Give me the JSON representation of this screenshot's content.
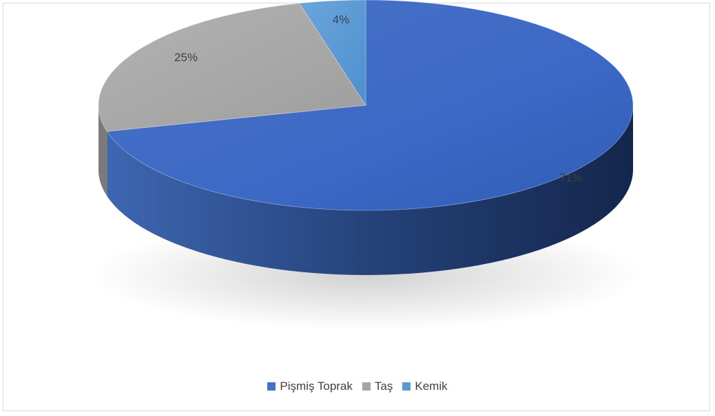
{
  "chart_data": {
    "type": "pie",
    "title": "",
    "categories": [
      "Pişmiş Toprak",
      "Taş",
      "Kemik"
    ],
    "values": [
      71,
      25,
      4
    ],
    "labels": [
      "71%",
      "25%",
      "4%"
    ],
    "colors": [
      "#4472c4",
      "#a5a5a5",
      "#5b9bd5"
    ],
    "legend_position": "bottom",
    "style": "3d"
  }
}
